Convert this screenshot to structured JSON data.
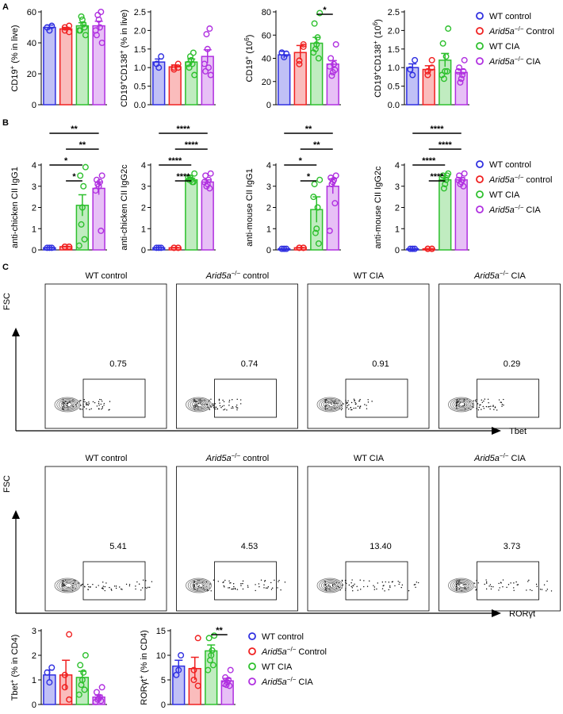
{
  "panel_labels": [
    "A",
    "B",
    "C"
  ],
  "chart_data": [
    {
      "type": "bar",
      "ylabel": [
        {
          "text": "CD19"
        },
        {
          "text": "+",
          "sup": true
        },
        {
          "text": " (% in live)"
        }
      ],
      "ylim": [
        0,
        60
      ],
      "yticks": [
        0,
        20,
        40,
        60
      ],
      "groups": [
        {
          "color": "#2f2fe0",
          "mean": 50,
          "sem": 1.5,
          "points": [
            51,
            48,
            50
          ]
        },
        {
          "color": "#f02020",
          "mean": 49,
          "sem": 1,
          "points": [
            47,
            50,
            48,
            51
          ]
        },
        {
          "color": "#2dc02d",
          "mean": 51,
          "sem": 2,
          "points": [
            45,
            48,
            52,
            55,
            57,
            50,
            48
          ]
        },
        {
          "color": "#b030e0",
          "mean": 51,
          "sem": 3,
          "points": [
            40,
            45,
            50,
            55,
            58,
            60,
            48
          ]
        }
      ],
      "brackets": []
    },
    {
      "type": "bar",
      "ylabel": [
        {
          "text": "CD19"
        },
        {
          "text": "+",
          "sup": true
        },
        {
          "text": "CD138"
        },
        {
          "text": "+",
          "sup": true
        },
        {
          "text": " (% in live)"
        }
      ],
      "ylim": [
        0,
        2.5
      ],
      "yticks": [
        {
          "value": 0,
          "label": "0.0"
        },
        0.5,
        {
          "value": 1,
          "label": "1.0"
        },
        1.5,
        {
          "value": 2,
          "label": "2.0"
        },
        2.5
      ],
      "groups": [
        {
          "color": "#2f2fe0",
          "mean": 1.15,
          "sem": 0.08,
          "points": [
            1.3,
            1.0,
            1.1
          ]
        },
        {
          "color": "#f02020",
          "mean": 1.02,
          "sem": 0.05,
          "points": [
            1.1,
            0.95,
            1.0,
            1.0
          ]
        },
        {
          "color": "#2dc02d",
          "mean": 1.15,
          "sem": 0.08,
          "points": [
            0.8,
            1.0,
            1.1,
            1.2,
            1.3,
            1.4,
            1.1
          ]
        },
        {
          "color": "#b030e0",
          "mean": 1.3,
          "sem": 0.18,
          "points": [
            0.8,
            0.9,
            1.0,
            1.5,
            1.9,
            2.05,
            1.1
          ]
        }
      ],
      "brackets": []
    },
    {
      "type": "bar",
      "ylabel": [
        {
          "text": "CD19"
        },
        {
          "text": "+",
          "sup": true
        },
        {
          "text": " (10"
        },
        {
          "text": "6",
          "sup": true
        },
        {
          "text": ")"
        }
      ],
      "ylim": [
        0,
        80
      ],
      "yticks": [
        0,
        20,
        40,
        60,
        80
      ],
      "groups": [
        {
          "color": "#2f2fe0",
          "mean": 43,
          "sem": 3,
          "points": [
            44,
            41,
            45
          ]
        },
        {
          "color": "#f02020",
          "mean": 45,
          "sem": 6,
          "points": [
            52,
            38,
            35,
            50
          ]
        },
        {
          "color": "#2dc02d",
          "mean": 53,
          "sem": 5,
          "points": [
            79,
            70,
            58,
            52,
            48,
            40,
            45
          ]
        },
        {
          "color": "#b030e0",
          "mean": 35,
          "sem": 3,
          "points": [
            52,
            40,
            35,
            28,
            25,
            30,
            33
          ]
        }
      ],
      "brackets": [
        {
          "between": [
            2,
            3
          ],
          "label": "*"
        }
      ]
    },
    {
      "type": "bar",
      "ylabel": [
        {
          "text": "CD19"
        },
        {
          "text": "+",
          "sup": true
        },
        {
          "text": "CD138"
        },
        {
          "text": "+",
          "sup": true
        },
        {
          "text": " (10"
        },
        {
          "text": "6",
          "sup": true
        },
        {
          "text": ")"
        }
      ],
      "ylim": [
        0,
        2.5
      ],
      "yticks": [
        {
          "value": 0,
          "label": "0.0"
        },
        0.5,
        {
          "value": 1,
          "label": "1.0"
        },
        1.5,
        {
          "value": 2,
          "label": "2.0"
        },
        2.5
      ],
      "groups": [
        {
          "color": "#2f2fe0",
          "mean": 1.0,
          "sem": 0.1,
          "points": [
            1.2,
            0.8,
            0.95
          ]
        },
        {
          "color": "#f02020",
          "mean": 0.95,
          "sem": 0.1,
          "points": [
            1.2,
            0.8,
            0.9,
            1.0
          ]
        },
        {
          "color": "#2dc02d",
          "mean": 1.2,
          "sem": 0.18,
          "points": [
            2.05,
            1.65,
            1.3,
            0.9,
            0.7,
            0.9,
            0.8
          ]
        },
        {
          "color": "#b030e0",
          "mean": 0.87,
          "sem": 0.08,
          "points": [
            1.2,
            1.0,
            0.8,
            0.7,
            0.6,
            0.9,
            0.9
          ]
        }
      ],
      "brackets": []
    },
    {
      "type": "bar",
      "ylabel": [
        {
          "text": "anti-chicken CII IgG1"
        }
      ],
      "ylim": [
        0,
        4
      ],
      "yticks": [
        0,
        1,
        2,
        3,
        4
      ],
      "groups": [
        {
          "color": "#2f2fe0",
          "mean": 0.1,
          "sem": 0.01,
          "points": [
            0.1,
            0.1,
            0.1
          ]
        },
        {
          "color": "#f02020",
          "mean": 0.15,
          "sem": 0.02,
          "points": [
            0.15,
            0.15,
            0.15,
            0.15
          ]
        },
        {
          "color": "#2dc02d",
          "mean": 2.1,
          "sem": 0.5,
          "points": [
            3.9,
            3.5,
            3.0,
            2.0,
            1.2,
            0.5,
            0.2
          ]
        },
        {
          "color": "#b030e0",
          "mean": 2.9,
          "sem": 0.3,
          "points": [
            3.5,
            3.3,
            3.2,
            3.0,
            3.1,
            0.9,
            2.8
          ]
        }
      ],
      "brackets": [
        {
          "between": [
            1,
            2
          ],
          "label": "*"
        },
        {
          "between": [
            0,
            2
          ],
          "label": "*"
        },
        {
          "between": [
            1,
            3
          ],
          "label": "**"
        },
        {
          "between": [
            0,
            3
          ],
          "label": "**"
        }
      ]
    },
    {
      "type": "bar",
      "ylabel": [
        {
          "text": "anti-chicken CII IgG2c"
        }
      ],
      "ylim": [
        0,
        4
      ],
      "yticks": [
        0,
        1,
        2,
        3,
        4
      ],
      "groups": [
        {
          "color": "#2f2fe0",
          "mean": 0.1,
          "sem": 0.01,
          "points": [
            0.1,
            0.1,
            0.1
          ]
        },
        {
          "color": "#f02020",
          "mean": 0.1,
          "sem": 0.01,
          "points": [
            0.1,
            0.1,
            0.1,
            0.1
          ]
        },
        {
          "color": "#2dc02d",
          "mean": 3.3,
          "sem": 0.08,
          "points": [
            3.6,
            3.3,
            3.2,
            3.3,
            3.4,
            3.2,
            3.4
          ]
        },
        {
          "color": "#b030e0",
          "mean": 3.2,
          "sem": 0.1,
          "points": [
            3.6,
            3.5,
            3.3,
            3.1,
            3.0,
            2.9,
            3.2
          ]
        }
      ],
      "brackets": [
        {
          "between": [
            1,
            2
          ],
          "label": "****"
        },
        {
          "between": [
            0,
            2
          ],
          "label": "****"
        },
        {
          "between": [
            1,
            3
          ],
          "label": "****"
        },
        {
          "between": [
            0,
            3
          ],
          "label": "****"
        }
      ]
    },
    {
      "type": "bar",
      "ylabel": [
        {
          "text": "anti-mouse CII IgG1"
        }
      ],
      "ylim": [
        0,
        4
      ],
      "yticks": [
        0,
        1,
        2,
        3,
        4
      ],
      "groups": [
        {
          "color": "#2f2fe0",
          "mean": 0.05,
          "sem": 0.01,
          "points": [
            0.05,
            0.05,
            0.05
          ]
        },
        {
          "color": "#f02020",
          "mean": 0.1,
          "sem": 0.01,
          "points": [
            0.1,
            0.1,
            0.1,
            0.1
          ]
        },
        {
          "color": "#2dc02d",
          "mean": 1.9,
          "sem": 0.6,
          "points": [
            3.3,
            3.1,
            2.0,
            1.0,
            0.8,
            0.3,
            2.5
          ]
        },
        {
          "color": "#b030e0",
          "mean": 3.0,
          "sem": 0.35,
          "points": [
            3.5,
            3.4,
            3.3,
            3.2,
            3.1,
            2.2,
            0.9
          ]
        }
      ],
      "brackets": [
        {
          "between": [
            1,
            2
          ],
          "label": "*"
        },
        {
          "between": [
            0,
            2
          ],
          "label": "*"
        },
        {
          "between": [
            1,
            3
          ],
          "label": "**"
        },
        {
          "between": [
            0,
            3
          ],
          "label": "**"
        }
      ]
    },
    {
      "type": "bar",
      "ylabel": [
        {
          "text": "anti-mouse CII IgG2c"
        }
      ],
      "ylim": [
        0,
        4
      ],
      "yticks": [
        0,
        1,
        2,
        3,
        4
      ],
      "groups": [
        {
          "color": "#2f2fe0",
          "mean": 0.05,
          "sem": 0.01,
          "points": [
            0.05,
            0.05,
            0.05
          ]
        },
        {
          "color": "#f02020",
          "mean": 0.05,
          "sem": 0.01,
          "points": [
            0.05,
            0.05,
            0.05,
            0.05
          ]
        },
        {
          "color": "#2dc02d",
          "mean": 3.3,
          "sem": 0.1,
          "points": [
            3.6,
            3.5,
            3.3,
            3.1,
            2.9,
            3.5,
            3.4
          ]
        },
        {
          "color": "#b030e0",
          "mean": 3.3,
          "sem": 0.1,
          "points": [
            3.6,
            3.5,
            3.3,
            3.2,
            3.1,
            3.0,
            3.3
          ]
        }
      ],
      "brackets": [
        {
          "between": [
            1,
            2
          ],
          "label": "****"
        },
        {
          "between": [
            0,
            2
          ],
          "label": "****"
        },
        {
          "between": [
            1,
            3
          ],
          "label": "****"
        },
        {
          "between": [
            0,
            3
          ],
          "label": "****"
        }
      ]
    },
    {
      "type": "bar",
      "ylabel": [
        {
          "text": "Tbet"
        },
        {
          "text": "+",
          "sup": true
        },
        {
          "text": " (% in CD4)"
        }
      ],
      "ylim": [
        0,
        3
      ],
      "yticks": [
        0,
        1,
        2,
        3
      ],
      "groups": [
        {
          "color": "#2f2fe0",
          "mean": 1.2,
          "sem": 0.2,
          "points": [
            1.5,
            0.9,
            1.3
          ]
        },
        {
          "color": "#f02020",
          "mean": 1.2,
          "sem": 0.6,
          "points": [
            2.85,
            1.2,
            0.7,
            0.2
          ]
        },
        {
          "color": "#2dc02d",
          "mean": 1.1,
          "sem": 0.25,
          "points": [
            2.0,
            1.6,
            1.3,
            1.0,
            0.8,
            0.6,
            0.4
          ]
        },
        {
          "color": "#b030e0",
          "mean": 0.3,
          "sem": 0.08,
          "points": [
            0.7,
            0.5,
            0.3,
            0.25,
            0.2,
            0.15,
            0.1
          ]
        }
      ],
      "brackets": []
    },
    {
      "type": "bar",
      "ylabel": [
        {
          "text": "RORγt"
        },
        {
          "text": "+",
          "sup": true
        },
        {
          "text": " (% in CD4)"
        }
      ],
      "ylim": [
        0,
        15
      ],
      "yticks": [
        0,
        5,
        10,
        15
      ],
      "groups": [
        {
          "color": "#2f2fe0",
          "mean": 7.8,
          "sem": 1.2,
          "points": [
            10,
            7,
            6
          ]
        },
        {
          "color": "#f02020",
          "mean": 7.3,
          "sem": 2.3,
          "points": [
            13.5,
            7,
            5,
            3.8
          ]
        },
        {
          "color": "#2dc02d",
          "mean": 10.9,
          "sem": 1.2,
          "points": [
            14,
            13.5,
            11,
            10,
            9,
            8,
            7
          ]
        },
        {
          "color": "#b030e0",
          "mean": 4.8,
          "sem": 0.5,
          "points": [
            7,
            5.5,
            5,
            4.5,
            4,
            3.8,
            4.2
          ]
        }
      ],
      "brackets": [
        {
          "between": [
            2,
            3
          ],
          "label": "**"
        }
      ]
    }
  ],
  "legends": [
    [
      {
        "color": "#2f2fe0",
        "label": [
          {
            "text": "WT control"
          }
        ]
      },
      {
        "color": "#f02020",
        "label": [
          {
            "text": "Arid5a",
            "italic": true
          },
          {
            "text": "−/−",
            "sup": true
          },
          {
            "text": " Control"
          }
        ]
      },
      {
        "color": "#2dc02d",
        "label": [
          {
            "text": "WT CIA"
          }
        ]
      },
      {
        "color": "#b030e0",
        "label": [
          {
            "text": "Arid5a",
            "italic": true
          },
          {
            "text": "−/−",
            "sup": true
          },
          {
            "text": " CIA"
          }
        ]
      }
    ],
    [
      {
        "color": "#2f2fe0",
        "label": [
          {
            "text": "WT control"
          }
        ]
      },
      {
        "color": "#f02020",
        "label": [
          {
            "text": "Arid5a",
            "italic": true
          },
          {
            "text": "−/−",
            "sup": true
          },
          {
            "text": " control"
          }
        ]
      },
      {
        "color": "#2dc02d",
        "label": [
          {
            "text": "WT CIA"
          }
        ]
      },
      {
        "color": "#b030e0",
        "label": [
          {
            "text": "Arid5a",
            "italic": true
          },
          {
            "text": "−/−",
            "sup": true
          },
          {
            "text": " CIA"
          }
        ]
      }
    ],
    [
      {
        "color": "#2f2fe0",
        "label": [
          {
            "text": "WT control"
          }
        ]
      },
      {
        "color": "#f02020",
        "label": [
          {
            "text": "Arid5a",
            "italic": true
          },
          {
            "text": "−/−",
            "sup": true
          },
          {
            "text": " Control"
          }
        ]
      },
      {
        "color": "#2dc02d",
        "label": [
          {
            "text": "WT CIA"
          }
        ]
      },
      {
        "color": "#b030e0",
        "label": [
          {
            "text": "Arid5a",
            "italic": true
          },
          {
            "text": "−/−",
            "sup": true
          },
          {
            "text": " CIA"
          }
        ]
      }
    ]
  ],
  "flow": [
    {
      "y_label": "FSC",
      "x_label": "Tbet",
      "plots": [
        {
          "title": [
            {
              "text": "WT control"
            }
          ],
          "gate": "0.75"
        },
        {
          "title": [
            {
              "text": "Arid5a",
              "italic": true
            },
            {
              "text": "−/−",
              "sup": true
            },
            {
              "text": " control"
            }
          ],
          "gate": "0.74"
        },
        {
          "title": [
            {
              "text": "WT CIA"
            }
          ],
          "gate": "0.91"
        },
        {
          "title": [
            {
              "text": "Arid5a",
              "italic": true
            },
            {
              "text": "−/−",
              "sup": true
            },
            {
              "text": " CIA"
            }
          ],
          "gate": "0.29"
        }
      ]
    },
    {
      "y_label": "FSC",
      "x_label": "RORγt",
      "plots": [
        {
          "title": [
            {
              "text": "WT control"
            }
          ],
          "gate": "5.41"
        },
        {
          "title": [
            {
              "text": "Arid5a",
              "italic": true
            },
            {
              "text": "−/−",
              "sup": true
            },
            {
              "text": " control"
            }
          ],
          "gate": "4.53"
        },
        {
          "title": [
            {
              "text": "WT CIA"
            }
          ],
          "gate": "13.40"
        },
        {
          "title": [
            {
              "text": "Arid5a",
              "italic": true
            },
            {
              "text": "−/−",
              "sup": true
            },
            {
              "text": " CIA"
            }
          ],
          "gate": "3.73"
        }
      ]
    }
  ]
}
